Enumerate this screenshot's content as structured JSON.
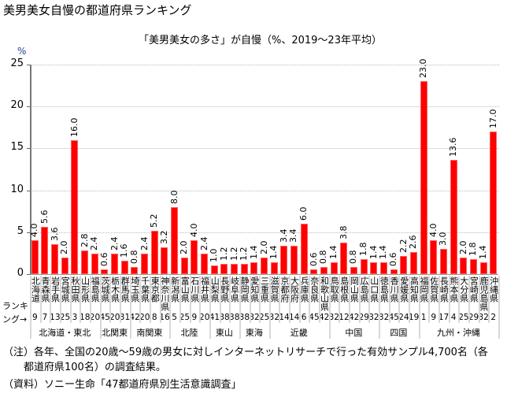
{
  "title": "美男美女自慢の都道府県ランキング",
  "chart_data": {
    "type": "bar",
    "title": "「美男美女の多さ」が自慢（%、2019～23年平均）",
    "ylabel": "%",
    "ylim": [
      0,
      25
    ],
    "yticks": [
      "0",
      "5",
      "10",
      "15",
      "20",
      "25"
    ],
    "grid": true,
    "bar_color": "#ff0000",
    "categories": [
      "北海道",
      "青森県",
      "岩手県",
      "宮城県",
      "秋田県",
      "山形県",
      "福島県",
      "茨城県",
      "栃木県",
      "群馬県",
      "埼玉県",
      "千葉県",
      "東京都",
      "神奈川県",
      "新潟県",
      "富山県",
      "石川県",
      "福井県",
      "山梨県",
      "長野県",
      "岐阜県",
      "静岡県",
      "愛知県",
      "三重県",
      "滋賀県",
      "京都府",
      "大阪府",
      "兵庫県",
      "奈良県",
      "和歌山県",
      "鳥取県",
      "島根県",
      "岡山県",
      "広島県",
      "山口県",
      "徳島県",
      "香川県",
      "愛媛県",
      "高知県",
      "福岡県",
      "佐賀県",
      "長崎県",
      "熊本県",
      "大分県",
      "宮崎県",
      "鹿児島県",
      "沖縄県"
    ],
    "values": [
      4.0,
      5.6,
      3.6,
      2.0,
      16.0,
      2.8,
      2.4,
      0.6,
      2.4,
      1.6,
      0.8,
      2.4,
      5.2,
      3.2,
      8.0,
      2.0,
      4.0,
      2.4,
      1.0,
      1.2,
      1.2,
      1.2,
      1.4,
      2.0,
      1.4,
      3.4,
      3.4,
      6.0,
      0.6,
      0.8,
      1.4,
      3.8,
      0.8,
      1.8,
      1.4,
      1.4,
      0.6,
      2.2,
      2.6,
      23.0,
      4.0,
      3.0,
      13.6,
      2.0,
      1.8,
      1.4,
      17.0
    ],
    "ranking_label": [
      "ランキ",
      "ング→"
    ],
    "ranking": [
      9,
      7,
      13,
      25,
      3,
      18,
      20,
      45,
      20,
      31,
      42,
      20,
      8,
      16,
      5,
      25,
      9,
      20,
      41,
      38,
      38,
      38,
      32,
      25,
      32,
      14,
      14,
      6,
      45,
      42,
      32,
      12,
      42,
      29,
      32,
      32,
      45,
      24,
      19,
      1,
      9,
      17,
      4,
      25,
      29,
      32,
      2
    ],
    "regions": [
      {
        "name": "北海道・東北",
        "count": 7
      },
      {
        "name": "北関東",
        "count": 3
      },
      {
        "name": "南関東",
        "count": 4
      },
      {
        "name": "北陸",
        "count": 4
      },
      {
        "name": "東山",
        "count": 3
      },
      {
        "name": "東海",
        "count": 3
      },
      {
        "name": "近畿",
        "count": 6
      },
      {
        "name": "中国",
        "count": 5
      },
      {
        "name": "四国",
        "count": 4
      },
      {
        "name": "九州・沖縄",
        "count": 8
      }
    ]
  },
  "notes": [
    "（注）各年、全国の20歳～59歳の男女に対しインターネットリサーチで行った有効サンプル4,700名（各",
    "　　都道府県100名）の調査結果。",
    "（資料）ソニー生命「47都道府県別生活意識調査」"
  ]
}
